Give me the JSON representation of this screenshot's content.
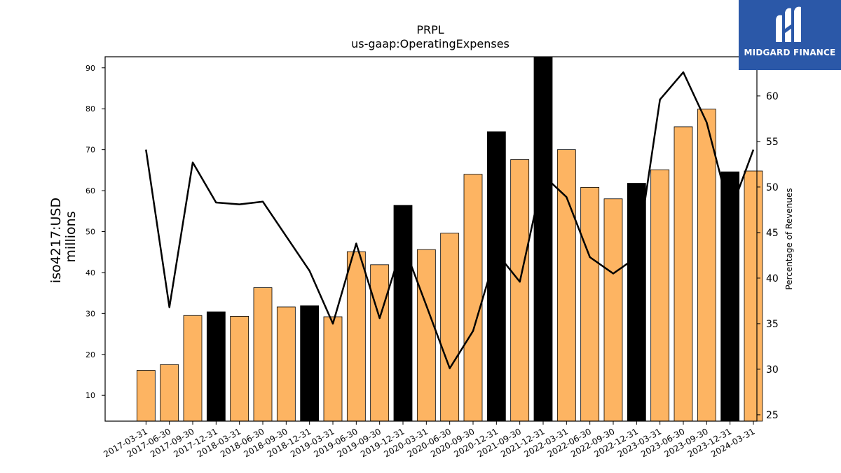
{
  "chart_data": {
    "type": "bar",
    "title": "PRPL",
    "subtitle": "us-gaap:OperatingExpenses",
    "ylabel": "iso4217:USD",
    "ylabel2": "millions",
    "y2label": "Percentage of Revenues",
    "ylim": [
      3.7,
      92.7
    ],
    "y2lim": [
      24.3,
      64.3
    ],
    "yticks": [
      10,
      20,
      30,
      40,
      50,
      60,
      70,
      80,
      90
    ],
    "y2ticks": [
      25,
      30,
      35,
      40,
      45,
      50,
      55,
      60
    ],
    "categories": [
      "2017-03-31",
      "2017-06-30",
      "2017-09-30",
      "2017-12-31",
      "2018-03-31",
      "2018-06-30",
      "2018-09-30",
      "2018-12-31",
      "2019-03-31",
      "2019-06-30",
      "2019-09-30",
      "2019-12-31",
      "2020-03-31",
      "2020-06-30",
      "2020-09-30",
      "2020-12-31",
      "2021-09-30",
      "2021-12-31",
      "2022-03-31",
      "2022-06-30",
      "2022-09-30",
      "2022-12-31",
      "2023-03-31",
      "2023-06-30",
      "2023-09-30",
      "2023-12-31",
      "2024-03-31"
    ],
    "series": [
      {
        "values": [
          16.1,
          17.5,
          29.5,
          30.4,
          29.3,
          36.3,
          31.6,
          31.9,
          29.2,
          45.1,
          41.9,
          56.4,
          45.6,
          49.6,
          64.0,
          74.4,
          67.6,
          92.8,
          70.0,
          60.8,
          58.0,
          61.8,
          65.1,
          75.6,
          79.9,
          64.6,
          64.8
        ],
        "highlight": [
          false,
          false,
          false,
          true,
          false,
          false,
          false,
          true,
          false,
          false,
          false,
          true,
          false,
          false,
          false,
          true,
          false,
          true,
          false,
          false,
          false,
          true,
          false,
          false,
          false,
          true,
          false
        ]
      },
      {
        "values": [
          54.1,
          36.8,
          52.7,
          48.3,
          48.1,
          48.4,
          44.6,
          40.8,
          35.0,
          43.8,
          35.6,
          43.8,
          37.0,
          30.1,
          34.2,
          42.8,
          39.6,
          51.3,
          48.9,
          42.3,
          40.5,
          42.3,
          59.6,
          62.6,
          57.1,
          47.2,
          54.1
        ]
      }
    ],
    "colors": {
      "bar": "#fdb462",
      "highlight_bar": "#000000",
      "line": "#000000"
    }
  },
  "logo": {
    "text": "MIDGARD FINANCE",
    "background": "#2b58a8"
  }
}
